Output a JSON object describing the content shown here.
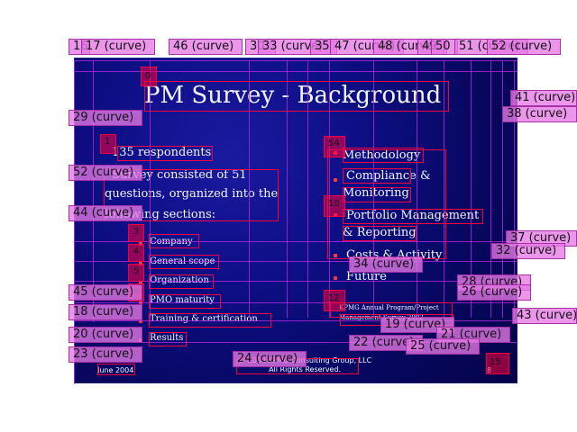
{
  "slide": {
    "title": "PM Survey - Background",
    "left_column": {
      "lead_bullet": "135 respondents",
      "survey_text_line1": "Survey consisted of 51",
      "survey_text_line2": "questions, organized into the",
      "survey_text_line3": "following sections:",
      "sections": [
        "Company",
        "General scope",
        "Organization",
        "PMO maturity",
        "Training & certification",
        "Results"
      ]
    },
    "right_column": {
      "methodology": "Methodology",
      "compliance_line1": "Compliance &",
      "compliance_line2": "Monitoring",
      "portfolio_line1": "Portfolio Management",
      "portfolio_line2": "& Reporting",
      "costs": "Costs & Activity",
      "future": "Future"
    },
    "source_line1": "KPMG Annual Program/Project",
    "source_line2": "Management Survey 2002",
    "footer_date": "June 2004",
    "footer_center_line1": "© 2004 KPMG Consulting Group, LLC",
    "footer_center_line2": "All Rights Reserved.",
    "footer_page": "8"
  },
  "overlay": {
    "small_numbers": [
      "0",
      "1",
      "54",
      "10",
      "12",
      "15"
    ],
    "left_stack_numbers": [
      "3",
      "4",
      "5",
      "6"
    ],
    "tags_top": [
      "16",
      "17 (curve)",
      "46 (curve)",
      "30",
      "33 (curve)",
      "35",
      "47 (curve)",
      "48 (curve)",
      "49",
      "50",
      "51 (curve)",
      "52 (curve)"
    ],
    "tags_left": [
      "29 (curve)",
      "52 (curve)",
      "44 (curve)",
      "45 (curve)",
      "18 (curve)",
      "20 (curve)",
      "23 (curve)"
    ],
    "tags_right": [
      "41 (curve)",
      "38 (curve)",
      "37 (curve)",
      "32 (curve)",
      "28 (curve)",
      "26 (curve)",
      "43 (curve)"
    ],
    "tags_bottom": [
      "24 (curve)",
      "22 (curve)",
      "19 (curve)",
      "21 (curve)",
      "25 (curve)",
      "34 (curve)"
    ],
    "colors": {
      "slide_accent": "#ff3b3b",
      "overlay_red": "#ff003c",
      "overlay_magenta": "#e678e6",
      "overlay_purple": "#be28e6"
    }
  }
}
